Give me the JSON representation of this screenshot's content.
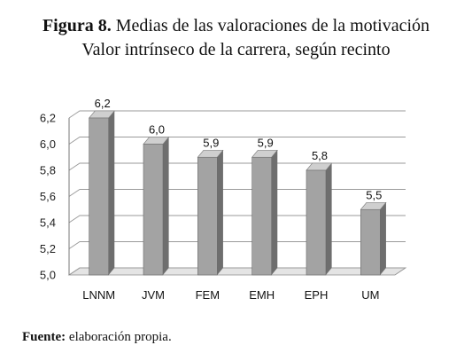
{
  "title": {
    "label": "Figura 8.",
    "text": "Medias de las valoraciones de la motivación"
  },
  "subtitle": "Valor intrínseco de la carrera, según recinto",
  "source": {
    "label": "Fuente:",
    "text": "elaboración propia."
  },
  "chart_data": {
    "type": "bar",
    "categories": [
      "LNNM",
      "JVM",
      "FEM",
      "EMH",
      "EPH",
      "UM"
    ],
    "values": [
      6.2,
      6.0,
      5.9,
      5.9,
      5.8,
      5.5
    ],
    "value_labels": [
      "6,2",
      "6,0",
      "5,9",
      "5,9",
      "5,8",
      "5,5"
    ],
    "yticks": [
      "5,0",
      "5,2",
      "5,4",
      "5,6",
      "5,8",
      "6,0",
      "6,2"
    ],
    "ylim": [
      5.0,
      6.2
    ],
    "grid": true,
    "three_d": true,
    "colors": {
      "bar_front": "#a3a3a3",
      "bar_side": "#6e6e6e",
      "bar_top": "#cfcfcf",
      "grid": "#9a9a9a"
    }
  }
}
